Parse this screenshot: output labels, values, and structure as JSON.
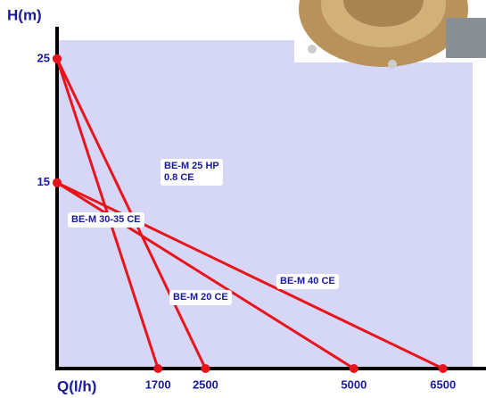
{
  "chart_data": {
    "type": "line",
    "x_label": "Q(l/h)",
    "y_label": "H(m)",
    "xlim": [
      0,
      7000
    ],
    "ylim": [
      0,
      26.5
    ],
    "xticks": [
      1700,
      2500,
      5000,
      6500
    ],
    "yticks": [
      15,
      25
    ],
    "series": [
      {
        "name": "BE-M 20 CE",
        "color": "#e8141c",
        "x": [
          0,
          1700
        ],
        "values": [
          25,
          0
        ]
      },
      {
        "name": "BE-M 25 HP 0.8 CE",
        "color": "#e8141c",
        "x": [
          0,
          2500
        ],
        "values": [
          25,
          0
        ]
      },
      {
        "name": "BE-M 30-35 CE",
        "color": "#e8141c",
        "x": [
          0,
          5000
        ],
        "values": [
          15,
          0
        ]
      },
      {
        "name": "BE-M 40 CE",
        "color": "#e8141c",
        "x": [
          0,
          6500
        ],
        "values": [
          15,
          0
        ]
      }
    ]
  }
}
